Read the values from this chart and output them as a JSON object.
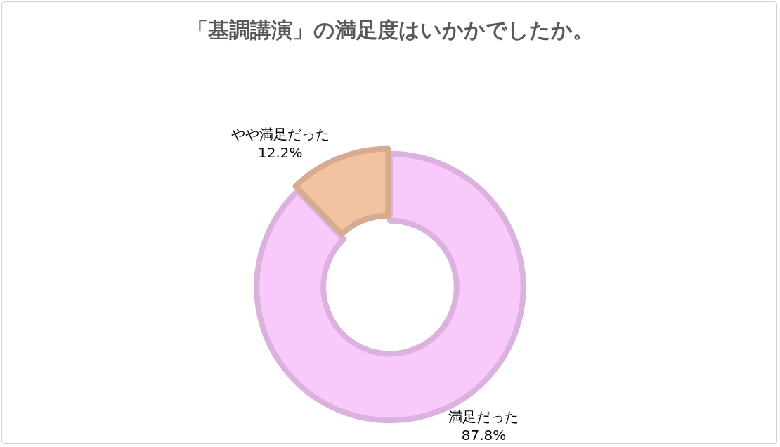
{
  "chart_data": {
    "type": "donut",
    "title": "「基調講演」の満足度はいかかでしたか。",
    "categories": [
      "満足だった",
      "やや満足だった"
    ],
    "values": [
      87.8,
      12.2
    ],
    "value_labels": [
      "87.8%",
      "12.2%"
    ],
    "colors": [
      "#f9c9fb",
      "#f3c2a3"
    ],
    "legend": false
  }
}
